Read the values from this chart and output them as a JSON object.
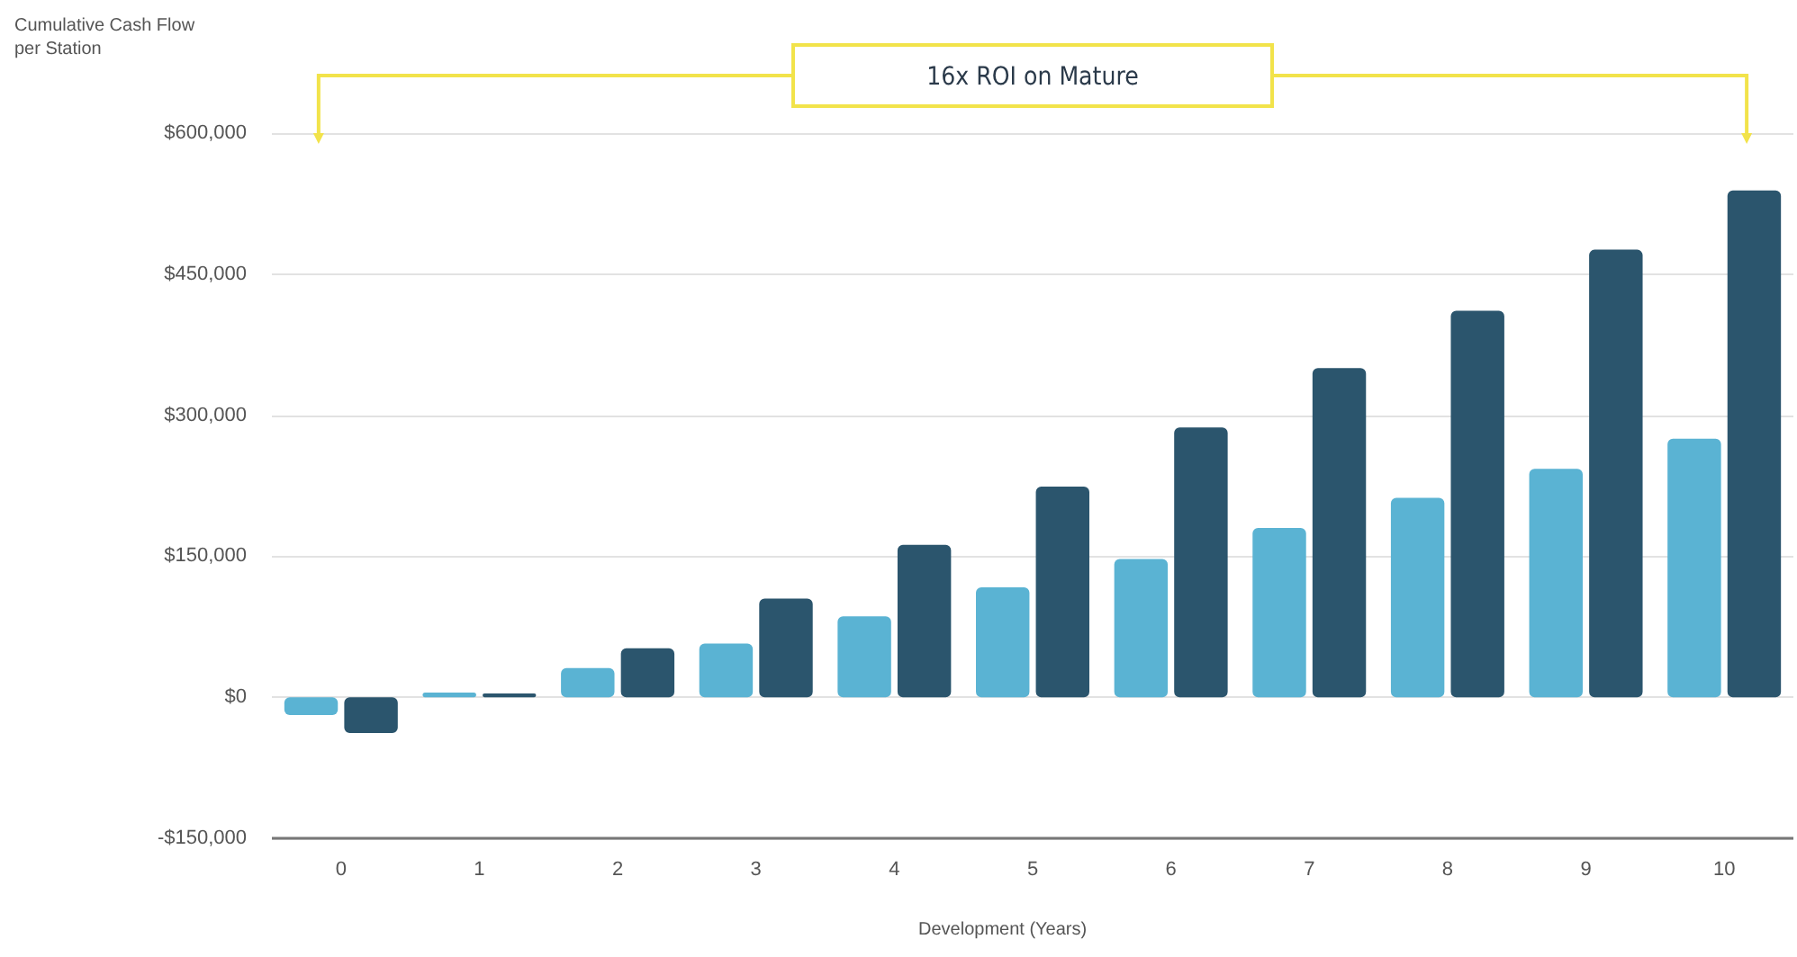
{
  "chart_data": {
    "type": "bar",
    "ylabel": "Cumulative Cash Flow per Station",
    "xlabel": "Development (Years)",
    "annotations": [
      "16x ROI on Mature"
    ],
    "categories": [
      "0",
      "1",
      "2",
      "3",
      "4",
      "5",
      "6",
      "7",
      "8",
      "9",
      "10"
    ],
    "series": [
      {
        "color": "#5ab3d3",
        "values": [
          -19000,
          5000,
          31000,
          57000,
          86000,
          117000,
          147000,
          180000,
          212000,
          243000,
          275000
        ]
      },
      {
        "color": "#2b556d",
        "values": [
          -38000,
          4000,
          52000,
          105000,
          162000,
          224000,
          287000,
          350000,
          411000,
          476000,
          539000
        ]
      }
    ],
    "ylim": [
      -150000,
      600000
    ],
    "yticks": [
      {
        "value": -150000,
        "label": "-$150,000"
      },
      {
        "value": 0,
        "label": "$0"
      },
      {
        "value": 150000,
        "label": "$150,000"
      },
      {
        "value": 300000,
        "label": "$300,000"
      },
      {
        "value": 450000,
        "label": "$450,000"
      },
      {
        "value": 600000,
        "label": "$600,000"
      }
    ],
    "grid": "y"
  }
}
